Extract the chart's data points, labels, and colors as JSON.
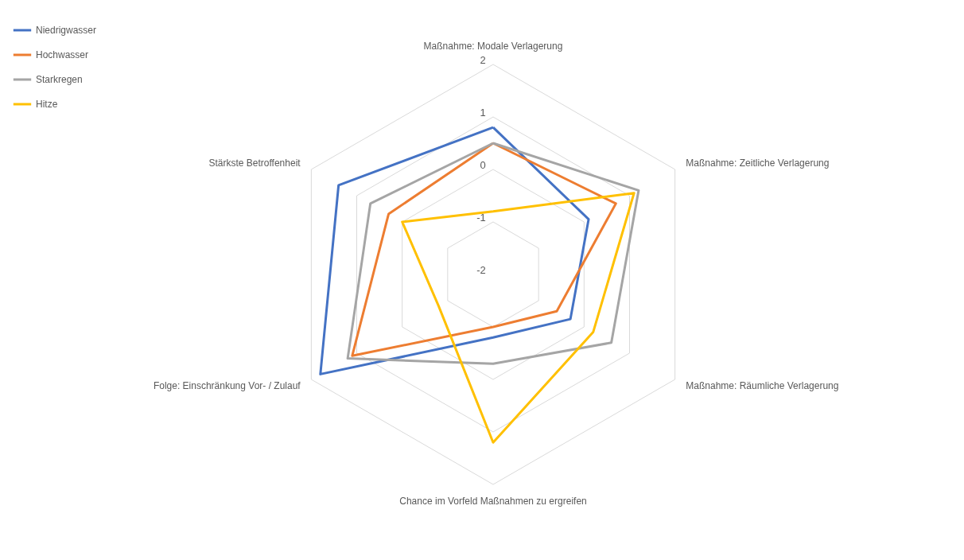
{
  "chart_data": {
    "type": "radar",
    "categories": [
      "Maßnahme: Modale Verlagerung",
      "Maßnahme: Zeitliche Verlagerung",
      "Maßnahme: Räumliche Verlagerung",
      "Chance im Vorfeld Maßnahmen zu ergreifen",
      "Folge: Einschränkung Vor- / Zulauf",
      "Stärkste Betroffenheit"
    ],
    "series": [
      {
        "name": "Niedrigwasser",
        "color": "#4472c4",
        "values": [
          0.8,
          0.1,
          -0.3,
          -0.8,
          1.8,
          1.4
        ]
      },
      {
        "name": "Hochwasser",
        "color": "#ed7d31",
        "values": [
          0.5,
          0.7,
          -0.6,
          -1.0,
          1.1,
          0.3
        ]
      },
      {
        "name": "Starkregen",
        "color": "#a5a5a5",
        "values": [
          0.5,
          1.2,
          0.6,
          -0.3,
          1.2,
          0.7
        ]
      },
      {
        "name": "Hitze",
        "color": "#ffc000",
        "values": [
          -0.8,
          1.1,
          0.2,
          1.2,
          -0.8,
          0.0
        ]
      }
    ],
    "ylim": [
      -2,
      2
    ],
    "yticks": [
      -2,
      -1,
      0,
      1,
      2
    ],
    "grid": true,
    "legend": "left"
  }
}
